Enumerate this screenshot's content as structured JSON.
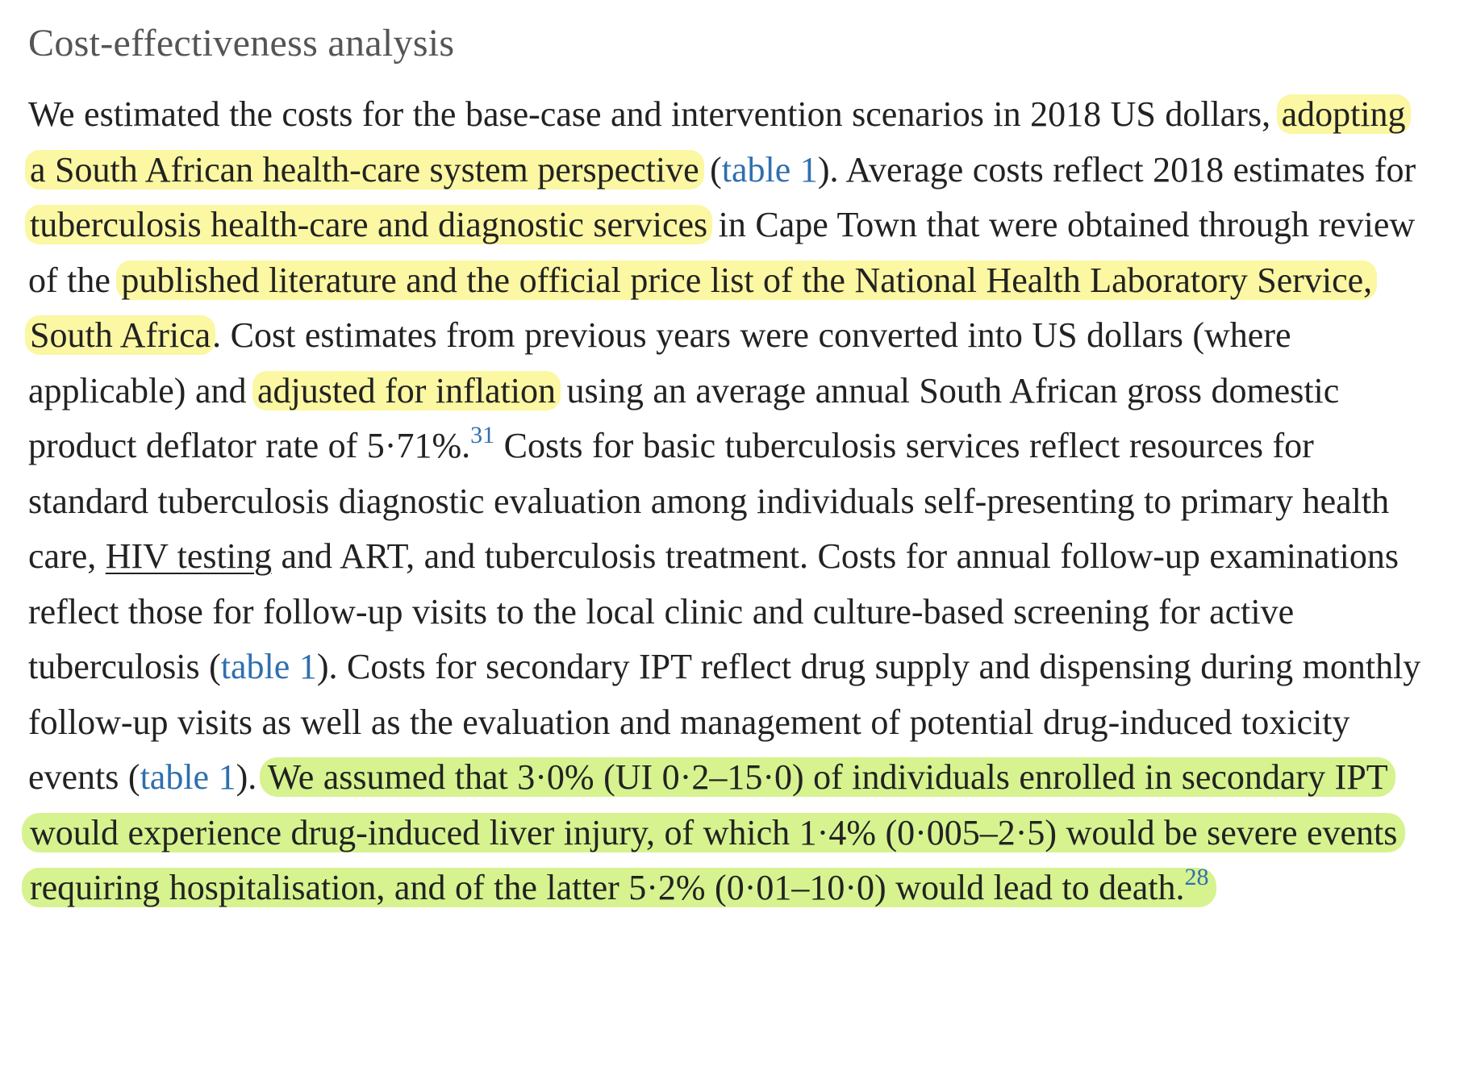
{
  "section": {
    "heading": "Cost-effectiveness analysis"
  },
  "paragraph": {
    "t1": "We estimated the costs for the base-case and intervention scenarios in 2018 US dollars, ",
    "hl1": "adopting a South African health-care system perspective",
    "t2": " (",
    "link1": "table 1",
    "t3": "). Average costs reflect 2018 estimates for ",
    "hl2": "tuberculosis health-care and diagnostic services",
    "t4": " in Cape Town that were obtained through review of the ",
    "hl3": "published literature and the official price list of the National Health Laboratory Service, South Africa",
    "t5": ". Cost estimates from previous years were converted into US dollars (where applicable) and ",
    "hl4": "adjusted for inflation",
    "t6": " using an average annual South African gross domestic product deflator rate of 5·71%.",
    "ref1": "31",
    "t7": " Costs for basic tuberculosis services reflect resources for standard tuberculosis diagnostic evaluation among individuals self-presenting to primary health care, ",
    "term1": "HIV testing",
    "t8": " and ART, and tuberculosis treatment. Costs for annual follow-up examinations reflect those for follow-up visits to the local clinic and culture-based screening for active tuberculosis (",
    "link2": "table 1",
    "t9": "). Costs for secondary IPT reflect drug supply and dispensing during monthly follow-up visits as well as the evaluation and management of potential drug-induced toxicity events (",
    "link3": "table 1",
    "t10": "). ",
    "hl5": "We assumed that 3·0% (UI 0·2–15·0) of individuals enrolled in secondary IPT would experience drug-induced liver injury, of which 1·4% (0·005–2·5) would be severe events requiring hospitalisation, and of the latter 5·2% (0·01–10·0) would lead to death.",
    "ref2": "28"
  },
  "colors": {
    "highlight_yellow": "#fbf7a2",
    "highlight_green": "#d6f38f",
    "link": "#2f6fb0",
    "text": "#222222",
    "heading": "#555555"
  }
}
